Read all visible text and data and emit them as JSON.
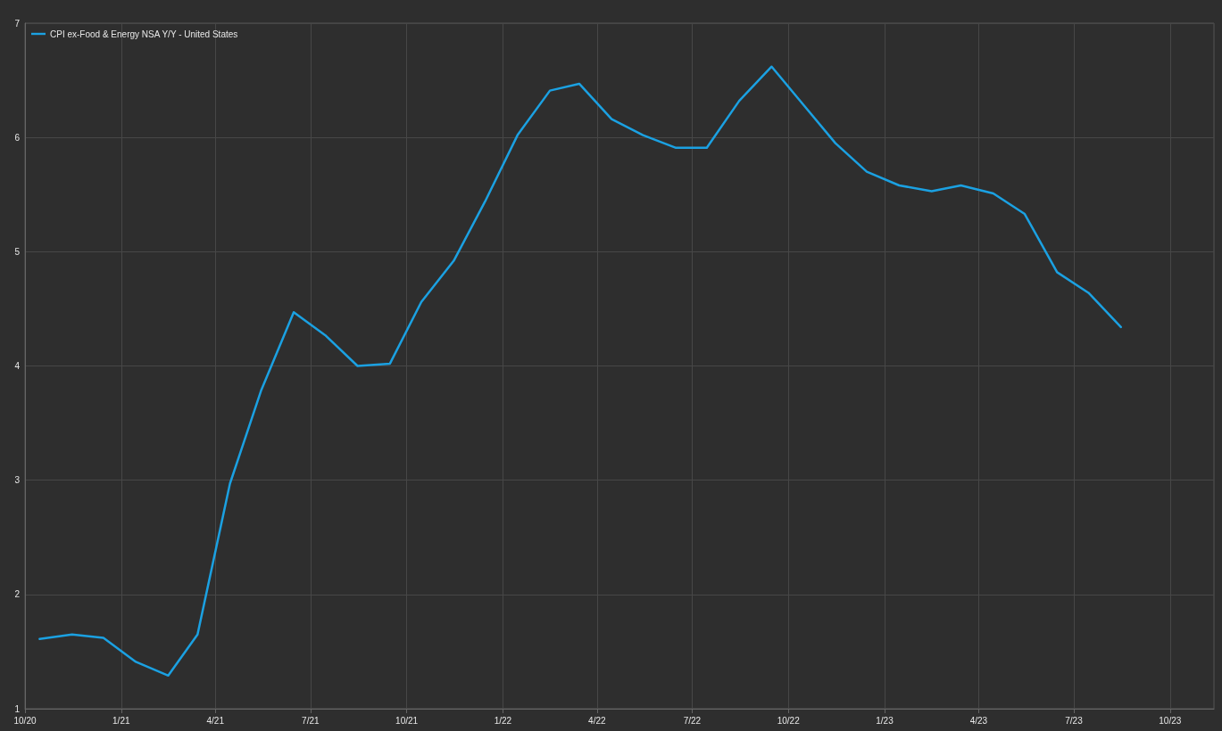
{
  "chart_data": {
    "type": "line",
    "x": [
      "2020-10-15",
      "2020-11-15",
      "2020-12-15",
      "2021-01-15",
      "2021-02-15",
      "2021-03-15",
      "2021-04-15",
      "2021-05-15",
      "2021-06-15",
      "2021-07-15",
      "2021-08-15",
      "2021-09-15",
      "2021-10-15",
      "2021-11-15",
      "2021-12-15",
      "2022-01-15",
      "2022-02-15",
      "2022-03-15",
      "2022-04-15",
      "2022-05-15",
      "2022-06-15",
      "2022-07-15",
      "2022-08-15",
      "2022-09-15",
      "2022-10-15",
      "2022-11-15",
      "2022-12-15",
      "2023-01-15",
      "2023-02-15",
      "2023-03-15",
      "2023-04-15",
      "2023-05-15",
      "2023-06-15",
      "2023-07-15",
      "2023-08-15"
    ],
    "series": [
      {
        "name": "CPI ex-Food & Energy NSA Y/Y - United States",
        "color": "#1ba1e2",
        "values": [
          1.61,
          1.65,
          1.62,
          1.41,
          1.29,
          1.65,
          2.97,
          3.79,
          4.47,
          4.27,
          4.0,
          4.02,
          4.56,
          4.92,
          5.44,
          6.02,
          6.41,
          6.47,
          6.16,
          6.02,
          5.91,
          5.91,
          6.32,
          6.62,
          6.29,
          5.95,
          5.7,
          5.58,
          5.53,
          5.58,
          5.51,
          5.33,
          4.82,
          4.64,
          4.34
        ]
      }
    ],
    "xlim": [
      "2020-10-01",
      "2023-11-12"
    ],
    "xticks": [
      {
        "value": "2020-10-01",
        "label": "10/20"
      },
      {
        "value": "2021-01-01",
        "label": "1/21"
      },
      {
        "value": "2021-04-01",
        "label": "4/21"
      },
      {
        "value": "2021-07-01",
        "label": "7/21"
      },
      {
        "value": "2021-10-01",
        "label": "10/21"
      },
      {
        "value": "2022-01-01",
        "label": "1/22"
      },
      {
        "value": "2022-04-01",
        "label": "4/22"
      },
      {
        "value": "2022-07-01",
        "label": "7/22"
      },
      {
        "value": "2022-10-01",
        "label": "10/22"
      },
      {
        "value": "2023-01-01",
        "label": "1/23"
      },
      {
        "value": "2023-04-01",
        "label": "4/23"
      },
      {
        "value": "2023-07-01",
        "label": "7/23"
      },
      {
        "value": "2023-10-01",
        "label": "10/23"
      }
    ],
    "ylim": [
      1,
      7
    ],
    "yticks": [
      1,
      2,
      3,
      4,
      5,
      6,
      7
    ],
    "grid": true,
    "legend": "top left",
    "marker": "none",
    "line_style": "solid"
  }
}
